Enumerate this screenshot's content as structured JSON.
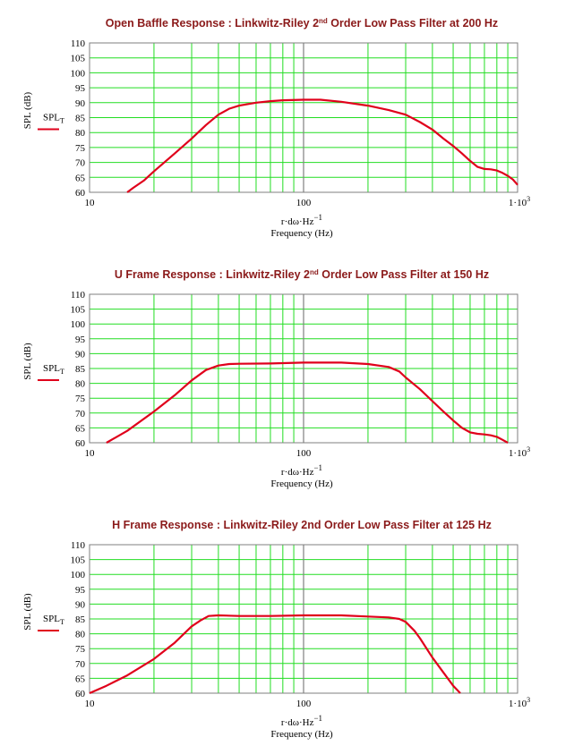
{
  "chart_data": [
    {
      "type": "line",
      "title": {
        "pre": "Open Baffle Response : Linkwitz-Riley 2",
        "sup": "nd",
        "post": " Order Low Pass Filter at 200 Hz"
      },
      "ylabel": "SPL (dB)",
      "xlabel_expr": "r·dω·Hz",
      "xlabel_exp": "−1",
      "xlabel": "Frequency (Hz)",
      "legend": {
        "label": "SPL",
        "sub": "T",
        "position": "left"
      },
      "x_scale": "log",
      "xlim": [
        10,
        1000
      ],
      "ylim": [
        60,
        110
      ],
      "y_ticks": [
        "110",
        "105",
        "100",
        "95",
        "90",
        "85",
        "80",
        "75",
        "70",
        "65",
        "60"
      ],
      "x_ticks": [
        {
          "value": 10,
          "base": "10",
          "exp": ""
        },
        {
          "value": 100,
          "base": "100",
          "exp": ""
        },
        {
          "value": 1000,
          "base": "1·10",
          "exp": "3"
        }
      ],
      "grid": true,
      "series": [
        {
          "color": "#e0001b",
          "points": [
            [
              15,
              60
            ],
            [
              16,
              61.5
            ],
            [
              18,
              64
            ],
            [
              20,
              67
            ],
            [
              25,
              73
            ],
            [
              30,
              78
            ],
            [
              35,
              82.5
            ],
            [
              40,
              86
            ],
            [
              45,
              88
            ],
            [
              50,
              89
            ],
            [
              60,
              90
            ],
            [
              70,
              90.5
            ],
            [
              80,
              90.8
            ],
            [
              100,
              91
            ],
            [
              120,
              91
            ],
            [
              150,
              90.3
            ],
            [
              200,
              89
            ],
            [
              250,
              87.5
            ],
            [
              300,
              86
            ],
            [
              350,
              83.5
            ],
            [
              400,
              81
            ],
            [
              450,
              78
            ],
            [
              500,
              75.5
            ],
            [
              550,
              73
            ],
            [
              600,
              70.5
            ],
            [
              650,
              68.5
            ],
            [
              700,
              67.8
            ],
            [
              750,
              67.7
            ],
            [
              800,
              67.3
            ],
            [
              850,
              66.5
            ],
            [
              900,
              65.5
            ],
            [
              950,
              64.3
            ],
            [
              1000,
              62.5
            ]
          ]
        }
      ]
    },
    {
      "type": "line",
      "title": {
        "pre": "U Frame Response : Linkwitz-Riley 2",
        "sup": "nd",
        "post": " Order Low Pass Filter at 150 Hz"
      },
      "ylabel": "SPL (dB)",
      "xlabel_expr": "r·dω·Hz",
      "xlabel_exp": "−1",
      "xlabel": "Frequency (Hz)",
      "legend": {
        "label": "SPL",
        "sub": "T",
        "position": "left"
      },
      "x_scale": "log",
      "xlim": [
        10,
        1000
      ],
      "ylim": [
        60,
        110
      ],
      "y_ticks": [
        "110",
        "105",
        "100",
        "95",
        "90",
        "85",
        "80",
        "75",
        "70",
        "65",
        "60"
      ],
      "x_ticks": [
        {
          "value": 10,
          "base": "10",
          "exp": ""
        },
        {
          "value": 100,
          "base": "100",
          "exp": ""
        },
        {
          "value": 1000,
          "base": "1·10",
          "exp": "3"
        }
      ],
      "grid": true,
      "series": [
        {
          "color": "#e0001b",
          "points": [
            [
              12,
              60
            ],
            [
              15,
              64
            ],
            [
              20,
              70.5
            ],
            [
              25,
              76
            ],
            [
              30,
              81
            ],
            [
              35,
              84.5
            ],
            [
              40,
              86
            ],
            [
              45,
              86.5
            ],
            [
              50,
              86.6
            ],
            [
              70,
              86.7
            ],
            [
              100,
              87
            ],
            [
              150,
              87
            ],
            [
              200,
              86.5
            ],
            [
              250,
              85.5
            ],
            [
              280,
              84
            ],
            [
              300,
              82
            ],
            [
              350,
              78
            ],
            [
              400,
              74
            ],
            [
              450,
              70.5
            ],
            [
              500,
              67.5
            ],
            [
              550,
              65
            ],
            [
              600,
              63.5
            ],
            [
              650,
              63
            ],
            [
              700,
              62.8
            ],
            [
              750,
              62.5
            ],
            [
              800,
              62
            ],
            [
              850,
              61
            ],
            [
              900,
              60
            ]
          ]
        }
      ]
    },
    {
      "type": "line",
      "title": {
        "pre": "H Frame Response : Linkwitz-Riley 2nd Order Low Pass Filter at 125 Hz",
        "sup": "",
        "post": ""
      },
      "ylabel": "SPL (dB)",
      "xlabel_expr": "r·dω·Hz",
      "xlabel_exp": "−1",
      "xlabel": "Frequency (Hz)",
      "legend": {
        "label": "SPL",
        "sub": "T",
        "position": "left"
      },
      "x_scale": "log",
      "xlim": [
        10,
        1000
      ],
      "ylim": [
        60,
        110
      ],
      "y_ticks": [
        "110",
        "105",
        "100",
        "95",
        "90",
        "85",
        "80",
        "75",
        "70",
        "65",
        "60"
      ],
      "x_ticks": [
        {
          "value": 10,
          "base": "10",
          "exp": ""
        },
        {
          "value": 100,
          "base": "100",
          "exp": ""
        },
        {
          "value": 1000,
          "base": "1·10",
          "exp": "3"
        }
      ],
      "grid": true,
      "series": [
        {
          "color": "#e0001b",
          "points": [
            [
              10,
              60
            ],
            [
              12,
              62.5
            ],
            [
              15,
              66
            ],
            [
              20,
              71.5
            ],
            [
              25,
              77
            ],
            [
              30,
              82.5
            ],
            [
              33,
              84.5
            ],
            [
              36,
              86
            ],
            [
              40,
              86.2
            ],
            [
              50,
              86
            ],
            [
              70,
              86
            ],
            [
              100,
              86.2
            ],
            [
              150,
              86.2
            ],
            [
              200,
              85.8
            ],
            [
              250,
              85.5
            ],
            [
              280,
              85
            ],
            [
              300,
              84
            ],
            [
              330,
              81
            ],
            [
              350,
              78.5
            ],
            [
              400,
              72
            ],
            [
              450,
              67
            ],
            [
              500,
              62.5
            ],
            [
              540,
              60
            ]
          ]
        }
      ]
    }
  ]
}
